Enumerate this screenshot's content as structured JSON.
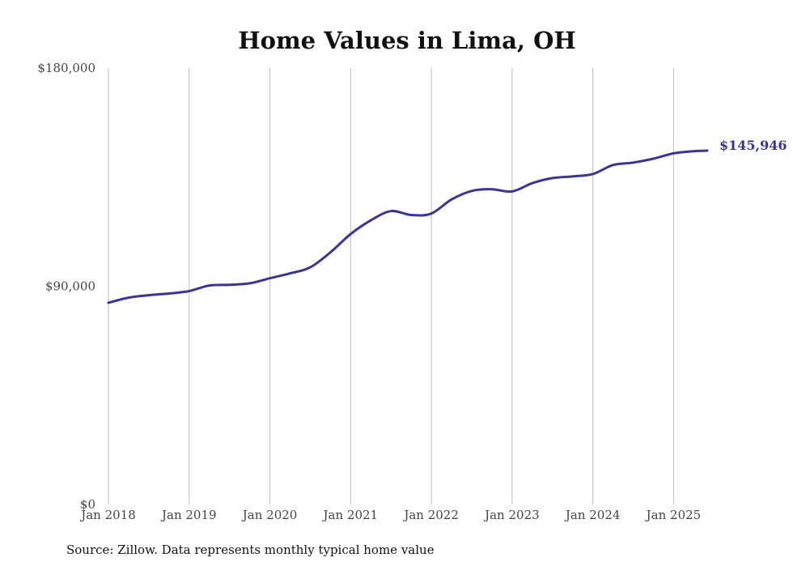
{
  "chart_data": {
    "type": "line",
    "title": "Home Values in Lima, OH",
    "xlabel": "",
    "ylabel": "",
    "ylim": [
      0,
      180000
    ],
    "y_ticks": [
      {
        "value": 0,
        "label": "$0"
      },
      {
        "value": 90000,
        "label": "$90,000"
      },
      {
        "value": 180000,
        "label": "$180,000"
      }
    ],
    "x_ticks": [
      {
        "date": "2018-01",
        "label": "Jan 2018"
      },
      {
        "date": "2019-01",
        "label": "Jan 2019"
      },
      {
        "date": "2020-01",
        "label": "Jan 2020"
      },
      {
        "date": "2021-01",
        "label": "Jan 2021"
      },
      {
        "date": "2022-01",
        "label": "Jan 2022"
      },
      {
        "date": "2023-01",
        "label": "Jan 2023"
      },
      {
        "date": "2024-01",
        "label": "Jan 2024"
      },
      {
        "date": "2025-01",
        "label": "Jan 2025"
      }
    ],
    "xlim": [
      "2018-01",
      "2025-06"
    ],
    "grid": "vertical",
    "line_color": "#3b3591",
    "end_label": "$145,946",
    "series": [
      {
        "points": [
          [
            "2018-01",
            83200
          ],
          [
            "2018-04",
            85300
          ],
          [
            "2018-07",
            86300
          ],
          [
            "2018-10",
            87000
          ],
          [
            "2019-01",
            88000
          ],
          [
            "2019-04",
            90300
          ],
          [
            "2019-07",
            90600
          ],
          [
            "2019-10",
            91200
          ],
          [
            "2020-01",
            93300
          ],
          [
            "2020-04",
            95300
          ],
          [
            "2020-07",
            97800
          ],
          [
            "2020-10",
            104000
          ],
          [
            "2021-01",
            111500
          ],
          [
            "2021-04",
            117200
          ],
          [
            "2021-07",
            121000
          ],
          [
            "2021-10",
            119400
          ],
          [
            "2022-01",
            120000
          ],
          [
            "2022-04",
            125800
          ],
          [
            "2022-07",
            129300
          ],
          [
            "2022-10",
            130000
          ],
          [
            "2023-01",
            129100
          ],
          [
            "2023-04",
            132500
          ],
          [
            "2023-07",
            134600
          ],
          [
            "2023-10",
            135300
          ],
          [
            "2024-01",
            136300
          ],
          [
            "2024-04",
            140000
          ],
          [
            "2024-07",
            141000
          ],
          [
            "2024-10",
            142600
          ],
          [
            "2025-01",
            144800
          ],
          [
            "2025-04",
            145700
          ],
          [
            "2025-06",
            145946
          ]
        ]
      }
    ]
  },
  "source_text": "Source: Zillow. Data represents monthly typical home value"
}
